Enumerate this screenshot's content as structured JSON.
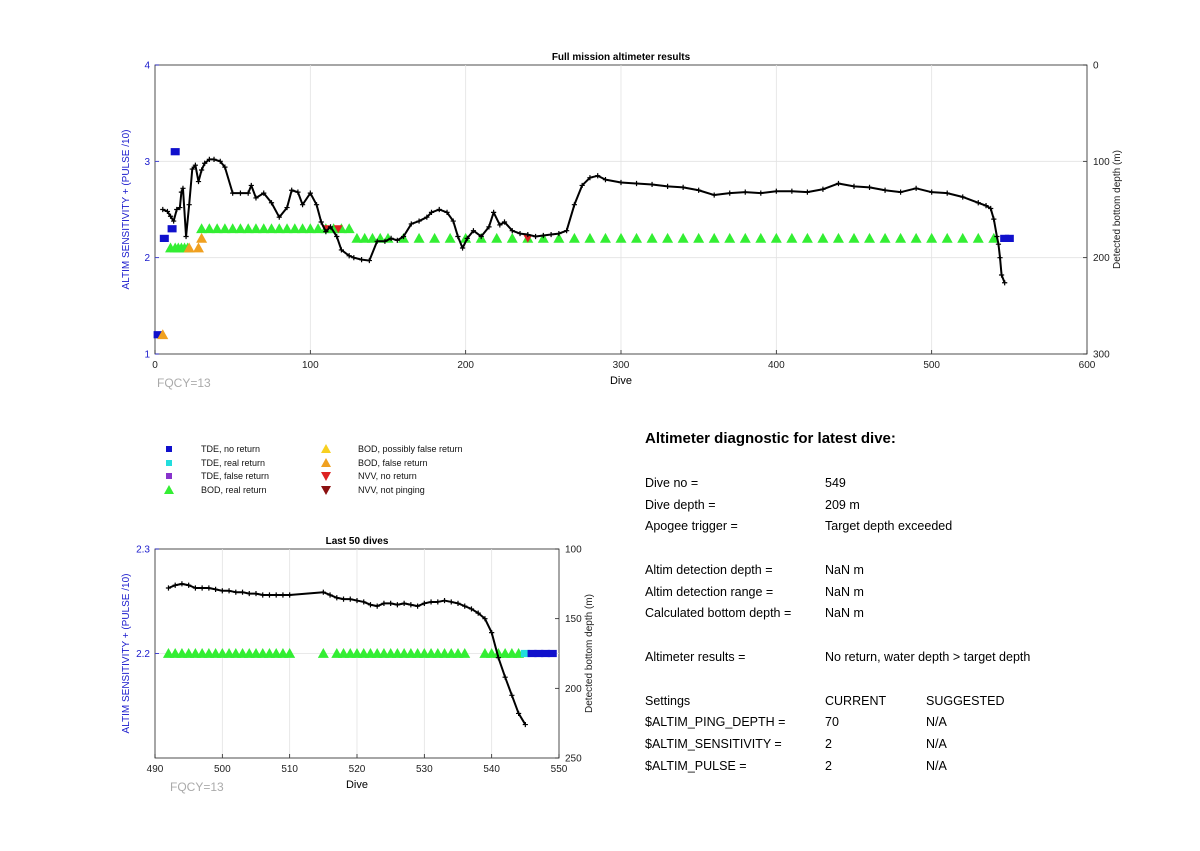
{
  "chart_data": [
    {
      "type": "line",
      "title": "Full mission altimeter results",
      "xlabel": "Dive",
      "ylabel": "ALTIM SENSITIVITY + (PULSE /10)",
      "ylabel_right": "Detected bottom depth (m)",
      "xlim": [
        0,
        600
      ],
      "ylim": [
        1,
        4
      ],
      "ylim_right": [
        300,
        0
      ],
      "x_ticks": [
        "0",
        "100",
        "200",
        "300",
        "400",
        "500",
        "600"
      ],
      "y_ticks": [
        "1",
        "2",
        "3",
        "4"
      ],
      "y_right_ticks": [
        "0",
        "100",
        "200",
        "300"
      ],
      "grid": true,
      "annotation": "FQCY=13",
      "series": [
        {
          "name": "Detected bottom depth",
          "color": "#000000",
          "x": [
            5,
            8,
            10,
            12,
            14,
            16,
            17,
            18,
            20,
            22,
            24,
            26,
            28,
            30,
            32,
            35,
            38,
            42,
            45,
            50,
            55,
            60,
            62,
            65,
            70,
            75,
            80,
            85,
            88,
            92,
            95,
            100,
            104,
            107,
            110,
            113,
            117,
            120,
            125,
            128,
            133,
            138,
            143,
            148,
            152,
            156,
            160,
            165,
            170,
            175,
            178,
            183,
            188,
            192,
            195,
            198,
            201,
            205,
            210,
            215,
            218,
            222,
            225,
            230,
            235,
            240,
            245,
            250,
            255,
            260,
            265,
            270,
            275,
            280,
            285,
            290,
            300,
            310,
            320,
            330,
            340,
            350,
            360,
            370,
            380,
            390,
            400,
            410,
            420,
            430,
            440,
            450,
            460,
            470,
            480,
            490,
            500,
            510,
            520,
            530,
            535,
            538,
            540,
            542,
            543,
            544,
            545,
            547
          ],
          "y": [
            150,
            152,
            157,
            162,
            150,
            148,
            132,
            128,
            178,
            145,
            108,
            104,
            121,
            109,
            102,
            98,
            98,
            100,
            106,
            133,
            133,
            133,
            125,
            138,
            133,
            143,
            158,
            148,
            130,
            132,
            145,
            133,
            145,
            163,
            173,
            168,
            178,
            192,
            198,
            200,
            202,
            203,
            183,
            183,
            180,
            182,
            178,
            165,
            162,
            158,
            153,
            150,
            153,
            162,
            178,
            190,
            180,
            172,
            178,
            168,
            153,
            166,
            163,
            172,
            175,
            176,
            178,
            177,
            176,
            175,
            172,
            145,
            125,
            117,
            115,
            119,
            122,
            123,
            124,
            126,
            127,
            130,
            135,
            133,
            132,
            133,
            131,
            131,
            132,
            129,
            123,
            126,
            127,
            130,
            132,
            128,
            132,
            133,
            137,
            143,
            146,
            149,
            160,
            178,
            186,
            200,
            218,
            226
          ]
        },
        {
          "name": "BOD, real return",
          "color": "#33ee33",
          "x": [
            10,
            13,
            15,
            17,
            19,
            21,
            30,
            35,
            40,
            45,
            50,
            55,
            60,
            65,
            70,
            75,
            80,
            85,
            90,
            95,
            100,
            105,
            110,
            115,
            120,
            125,
            130,
            135,
            140,
            145,
            150,
            160,
            170,
            180,
            190,
            200,
            210,
            220,
            230,
            240,
            250,
            260,
            270,
            280,
            290,
            300,
            310,
            320,
            330,
            340,
            350,
            360,
            370,
            380,
            390,
            400,
            410,
            420,
            430,
            440,
            450,
            460,
            470,
            480,
            490,
            500,
            510,
            520,
            530,
            540
          ],
          "y": [
            2.1,
            2.1,
            2.1,
            2.1,
            2.1,
            2.1,
            2.3,
            2.3,
            2.3,
            2.3,
            2.3,
            2.3,
            2.3,
            2.3,
            2.3,
            2.3,
            2.3,
            2.3,
            2.3,
            2.3,
            2.3,
            2.3,
            2.3,
            2.3,
            2.3,
            2.3,
            2.2,
            2.2,
            2.2,
            2.2,
            2.2,
            2.2,
            2.2,
            2.2,
            2.2,
            2.2,
            2.2,
            2.2,
            2.2,
            2.2,
            2.2,
            2.2,
            2.2,
            2.2,
            2.2,
            2.2,
            2.2,
            2.2,
            2.2,
            2.2,
            2.2,
            2.2,
            2.2,
            2.2,
            2.2,
            2.2,
            2.2,
            2.2,
            2.2,
            2.2,
            2.2,
            2.2,
            2.2,
            2.2,
            2.2,
            2.2,
            2.2,
            2.2,
            2.2,
            2.2
          ]
        },
        {
          "name": "TDE, no return",
          "color": "#1010cc",
          "x": [
            2,
            6,
            11,
            13,
            547,
            550
          ],
          "y": [
            1.2,
            2.2,
            2.3,
            3.1,
            2.2,
            2.2
          ]
        },
        {
          "name": "BOD, false return",
          "color": "#f0a020",
          "x": [
            5,
            22,
            28,
            30
          ],
          "y": [
            1.2,
            2.1,
            2.1,
            2.2
          ]
        },
        {
          "name": "NVV, no return",
          "color": "#dd2222",
          "x": [
            110,
            118,
            240
          ],
          "y": [
            2.3,
            2.3,
            2.2
          ]
        }
      ]
    },
    {
      "type": "line",
      "title": "Last 50 dives",
      "xlabel": "Dive",
      "ylabel": "ALTIM SENSITIVITY + (PULSE /10)",
      "ylabel_right": "Detected bottom depth (m)",
      "xlim": [
        490,
        550
      ],
      "ylim": [
        2.1,
        2.3
      ],
      "ylim_right": [
        250,
        100
      ],
      "x_ticks": [
        "490",
        "500",
        "510",
        "520",
        "530",
        "540",
        "550"
      ],
      "y_ticks": [
        "2.2",
        "2.3"
      ],
      "y_right_ticks": [
        "100",
        "150",
        "200",
        "250"
      ],
      "grid": true,
      "annotation": "FQCY=13",
      "series": [
        {
          "name": "Detected bottom depth",
          "color": "#000000",
          "x": [
            492,
            493,
            494,
            495,
            496,
            497,
            498,
            499,
            500,
            501,
            502,
            503,
            504,
            505,
            506,
            507,
            508,
            509,
            510,
            515,
            516,
            517,
            518,
            519,
            520,
            521,
            522,
            523,
            524,
            525,
            526,
            527,
            528,
            529,
            530,
            531,
            532,
            533,
            534,
            535,
            536,
            537,
            538,
            539,
            540,
            541,
            542,
            543,
            544,
            545
          ],
          "y": [
            128,
            126,
            125,
            126,
            128,
            128,
            128,
            129,
            130,
            130,
            131,
            131,
            132,
            132,
            133,
            133,
            133,
            133,
            133,
            131,
            133,
            135,
            136,
            136,
            137,
            138,
            140,
            141,
            139,
            139,
            140,
            139,
            140,
            141,
            139,
            138,
            138,
            137,
            138,
            139,
            141,
            143,
            146,
            150,
            160,
            178,
            192,
            205,
            218,
            226
          ]
        },
        {
          "name": "BOD, real return",
          "color": "#33ee33",
          "x": [
            492,
            493,
            494,
            495,
            496,
            497,
            498,
            499,
            500,
            501,
            502,
            503,
            504,
            505,
            506,
            507,
            508,
            509,
            510,
            515,
            517,
            518,
            519,
            520,
            521,
            522,
            523,
            524,
            525,
            526,
            527,
            528,
            529,
            530,
            531,
            532,
            533,
            534,
            535,
            536,
            539,
            540,
            541,
            542,
            543,
            544
          ],
          "y": [
            2.2,
            2.2,
            2.2,
            2.2,
            2.2,
            2.2,
            2.2,
            2.2,
            2.2,
            2.2,
            2.2,
            2.2,
            2.2,
            2.2,
            2.2,
            2.2,
            2.2,
            2.2,
            2.2,
            2.2,
            2.2,
            2.2,
            2.2,
            2.2,
            2.2,
            2.2,
            2.2,
            2.2,
            2.2,
            2.2,
            2.2,
            2.2,
            2.2,
            2.2,
            2.2,
            2.2,
            2.2,
            2.2,
            2.2,
            2.2,
            2.2,
            2.2,
            2.2,
            2.2,
            2.2,
            2.2
          ]
        },
        {
          "name": "TDE, real return",
          "color": "#22dddd",
          "x": [
            545
          ],
          "y": [
            2.2
          ]
        },
        {
          "name": "TDE, no return",
          "color": "#1010cc",
          "x": [
            546,
            547,
            548,
            549
          ],
          "y": [
            2.2,
            2.2,
            2.2,
            2.2
          ]
        }
      ]
    }
  ],
  "legend": {
    "items": [
      {
        "label": "TDE, no return",
        "color": "#1010cc",
        "marker": "square"
      },
      {
        "label": "TDE, real return",
        "color": "#22dddd",
        "marker": "square"
      },
      {
        "label": "TDE, false return",
        "color": "#8833cc",
        "marker": "square"
      },
      {
        "label": "BOD, real return",
        "color": "#33ee33",
        "marker": "triangle-up"
      },
      {
        "label": "BOD, possibly false return",
        "color": "#f8d020",
        "marker": "triangle-up"
      },
      {
        "label": "BOD, false return",
        "color": "#f0a020",
        "marker": "triangle-up"
      },
      {
        "label": "NVV, no return",
        "color": "#dd2222",
        "marker": "triangle-down"
      },
      {
        "label": "NVV, not pinging",
        "color": "#8b1010",
        "marker": "triangle-down"
      }
    ]
  },
  "diagnostic": {
    "title": "Altimeter diagnostic for latest dive:",
    "dive_no_label": "Dive no =",
    "dive_no": "549",
    "dive_depth_label": "Dive depth =",
    "dive_depth": "209 m",
    "apogee_label": "Apogee trigger =",
    "apogee": "Target depth exceeded",
    "altim_depth_label": "Altim detection depth =",
    "altim_depth": "NaN m",
    "altim_range_label": "Altim detection range =",
    "altim_range": "NaN m",
    "calc_depth_label": "Calculated bottom depth =",
    "calc_depth": "NaN m",
    "results_label": "Altimeter results =",
    "results": "No return, water depth > target depth",
    "settings_label": "Settings",
    "current_label": "CURRENT",
    "suggested_label": "SUGGESTED",
    "ping_depth_label": "$ALTIM_PING_DEPTH =",
    "ping_depth_current": "70",
    "ping_depth_suggested": "N/A",
    "sensitivity_label": "$ALTIM_SENSITIVITY =",
    "sensitivity_current": "2",
    "sensitivity_suggested": "N/A",
    "pulse_label": "$ALTIM_PULSE =",
    "pulse_current": "2",
    "pulse_suggested": "N/A"
  }
}
